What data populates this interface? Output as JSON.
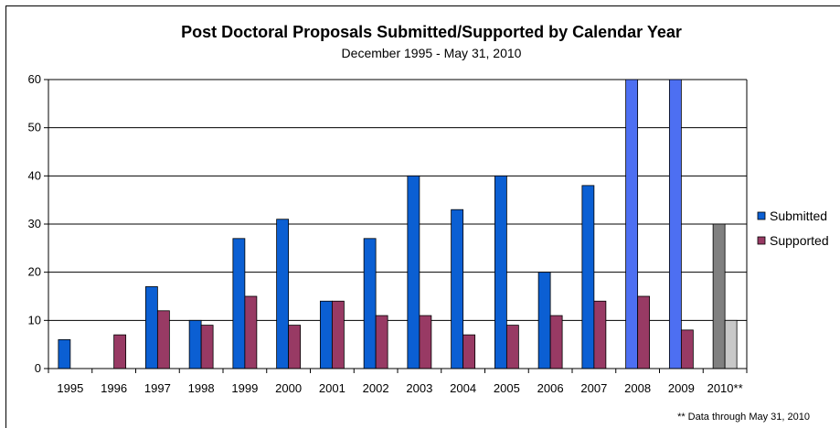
{
  "chart_data": {
    "type": "bar",
    "title": "Post Doctoral Proposals Submitted/Supported by Calendar Year",
    "subtitle": "December 1995 - May 31, 2010",
    "xlabel": "",
    "ylabel": "",
    "ylim": [
      0,
      60
    ],
    "yticks": [
      "0",
      "10",
      "20",
      "30",
      "40",
      "50",
      "60"
    ],
    "grid": "horizontal",
    "legend_position": "right",
    "categories": [
      "1995",
      "1996",
      "1997",
      "1998",
      "1999",
      "2000",
      "2001",
      "2002",
      "2003",
      "2004",
      "2005",
      "2006",
      "2007",
      "2008",
      "2009",
      "2010**"
    ],
    "series": [
      {
        "name": "Submitted",
        "values": [
          6,
          0,
          17,
          10,
          27,
          31,
          14,
          27,
          40,
          33,
          40,
          20,
          38,
          60,
          60,
          30
        ]
      },
      {
        "name": "Supported",
        "values": [
          0,
          7,
          12,
          9,
          15,
          9,
          14,
          11,
          11,
          7,
          9,
          11,
          14,
          15,
          8,
          10
        ]
      }
    ],
    "footnote": "** Data through May 31, 2010"
  },
  "colors": {
    "submitted": "#0b5fd3",
    "submitted_2008": "#4d6ff2",
    "submitted_2009": "#4d6ff2",
    "submitted_2010": "#808080",
    "supported": "#983a64",
    "supported_2010": "#c8c8c8",
    "gridline": "#000000",
    "axis": "#000000",
    "background": "#ffffff"
  }
}
